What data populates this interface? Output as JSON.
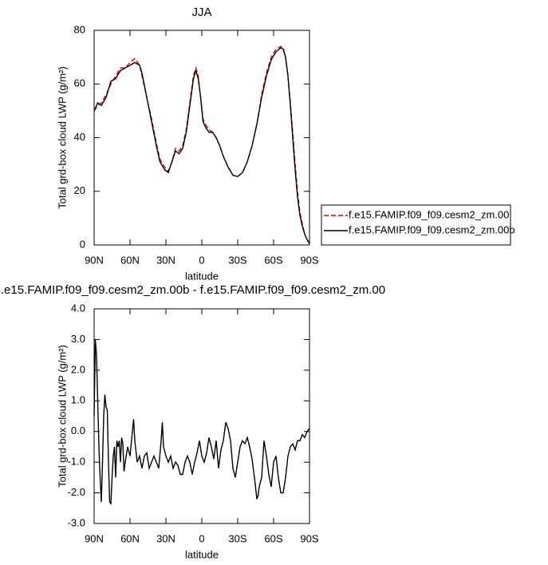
{
  "chart_data": [
    {
      "type": "line",
      "title": "JJA",
      "xlabel": "latitude",
      "ylabel": "Total grd-box cloud LWP (g/m²)",
      "x": [
        90,
        87,
        84,
        80,
        76,
        72,
        68,
        64,
        60,
        56,
        52,
        50,
        46,
        42,
        38,
        35,
        31,
        28,
        25,
        22,
        19,
        16,
        13,
        10,
        7,
        5,
        3,
        1,
        -1,
        -3,
        -6,
        -9,
        -12,
        -15,
        -18,
        -22,
        -26,
        -30,
        -34,
        -38,
        -42,
        -46,
        -50,
        -54,
        -58,
        -62,
        -66,
        -68,
        -70,
        -72,
        -74,
        -76,
        -78,
        -80,
        -82,
        -84,
        -86,
        -88,
        -90
      ],
      "series": [
        {
          "name": "f.e15.FAMIP.f09_f09.cesm2_zm.00",
          "color": "#e00000",
          "linestyle": "dashed",
          "values": [
            50,
            52,
            53,
            56,
            60,
            63,
            66,
            66,
            68,
            69.5,
            67,
            63,
            55,
            47,
            38,
            32,
            29,
            27.5,
            31,
            36,
            35,
            37,
            43,
            53,
            63,
            66,
            63,
            55,
            47,
            45,
            43,
            42,
            40,
            37,
            33,
            29,
            26,
            25.5,
            27,
            31,
            37,
            45,
            56,
            64,
            70,
            73,
            74,
            73.5,
            70,
            63,
            53,
            42,
            30,
            20,
            12,
            8,
            4,
            2,
            1
          ]
        },
        {
          "name": "f.e15.FAMIP.f09_f09.cesm2_zm.00b",
          "color": "#000000",
          "linestyle": "solid",
          "values": [
            50,
            53,
            52,
            55,
            61,
            62,
            65,
            66,
            67,
            68,
            67,
            64,
            55,
            46,
            37,
            31,
            28,
            27,
            31,
            35,
            34,
            36,
            42,
            52,
            62,
            65,
            62,
            55,
            46,
            44,
            42,
            42,
            40,
            37,
            33,
            29,
            26,
            25.5,
            27,
            31,
            37,
            45,
            55,
            63,
            69,
            72,
            73.5,
            73,
            70,
            63,
            52,
            40,
            28,
            18,
            11,
            7,
            4,
            2,
            0.5
          ]
        }
      ],
      "xlim": [
        90,
        -90
      ],
      "xticks": [
        {
          "value": 90,
          "label": "90N"
        },
        {
          "value": 60,
          "label": "60N"
        },
        {
          "value": 30,
          "label": "30N"
        },
        0,
        {
          "value": -30,
          "label": "30S"
        },
        {
          "value": -60,
          "label": "60S"
        },
        {
          "value": -90,
          "label": "90S"
        }
      ],
      "ylim": [
        0,
        80
      ],
      "yticks": [
        0,
        20,
        40,
        60,
        80
      ],
      "legend": "right"
    },
    {
      "type": "line",
      "title": ".e15.FAMIP.f09_f09.cesm2_zm.00b - f.e15.FAMIP.f09_f09.cesm2_zm.00",
      "xlabel": "latitude",
      "ylabel": "Total grd-box cloud LWP (g/m²)",
      "x": [
        90,
        89,
        88,
        87,
        86,
        85,
        84,
        83,
        82,
        81,
        80,
        79,
        78,
        77,
        76,
        75,
        74,
        73,
        72,
        71,
        70,
        69,
        68,
        67,
        66,
        65,
        64,
        62,
        60,
        58,
        57,
        56,
        54,
        52,
        50,
        48,
        46,
        44,
        42,
        40,
        38,
        36,
        34,
        33,
        32,
        30,
        28,
        26,
        24,
        22,
        20,
        18,
        16,
        14,
        12,
        10,
        8,
        6,
        4,
        2,
        0,
        -2,
        -4,
        -6,
        -8,
        -10,
        -12,
        -14,
        -16,
        -18,
        -20,
        -22,
        -24,
        -26,
        -28,
        -30,
        -32,
        -34,
        -36,
        -38,
        -40,
        -42,
        -44,
        -46,
        -47,
        -48,
        -50,
        -52,
        -54,
        -56,
        -58,
        -60,
        -62,
        -64,
        -66,
        -68,
        -70,
        -72,
        -74,
        -76,
        -78,
        -80,
        -82,
        -84,
        -86,
        -88,
        -90
      ],
      "values": [
        0.5,
        3.0,
        2.5,
        1.0,
        -0.5,
        -1.5,
        -2.3,
        -1.0,
        0.5,
        1.2,
        0.8,
        0.7,
        -1.0,
        -2.3,
        -2.35,
        -1.5,
        -0.8,
        -0.5,
        -1.5,
        -0.3,
        -0.5,
        -0.3,
        -1.0,
        -0.2,
        -0.4,
        -1.3,
        -1.0,
        -0.5,
        -0.8,
        0.0,
        0.4,
        -0.3,
        -1.0,
        -0.8,
        -1.2,
        -0.8,
        -0.7,
        -1.2,
        -1.0,
        -0.8,
        -1.0,
        -1.2,
        -0.3,
        0.3,
        -0.5,
        -0.8,
        -1.0,
        -0.8,
        -1.2,
        -1.0,
        -1.1,
        -1.4,
        -1.4,
        -1.0,
        -0.8,
        -1.0,
        -1.4,
        -1.0,
        -0.7,
        -0.3,
        -0.8,
        -1.0,
        -0.7,
        -0.2,
        -0.5,
        -0.9,
        -0.3,
        -1.2,
        -0.6,
        -0.3,
        0.3,
        0.1,
        -0.3,
        -1.2,
        -1.5,
        -1.0,
        -0.5,
        -0.3,
        -0.4,
        -0.2,
        -0.5,
        -0.9,
        -1.5,
        -2.2,
        -2.1,
        -1.8,
        -1.5,
        -0.3,
        -0.8,
        -1.4,
        -1.8,
        -1.0,
        -0.8,
        -1.5,
        -2.0,
        -2.0,
        -1.5,
        -0.8,
        -0.5,
        -0.4,
        -0.6,
        -0.3,
        -0.3,
        -0.1,
        -0.2,
        0.0,
        0.1
      ],
      "color": "#000000",
      "linestyle": "solid",
      "xlim": [
        90,
        -90
      ],
      "xticks": [
        {
          "value": 90,
          "label": "90N"
        },
        {
          "value": 60,
          "label": "60N"
        },
        {
          "value": 30,
          "label": "30N"
        },
        0,
        {
          "value": -30,
          "label": "30S"
        },
        {
          "value": -60,
          "label": "60S"
        },
        {
          "value": -90,
          "label": "90S"
        }
      ],
      "ylim": [
        -3,
        4
      ],
      "yticks": [
        {
          "value": -3,
          "label": "-3.0"
        },
        {
          "value": -2,
          "label": "-2.0"
        },
        {
          "value": -1,
          "label": "-1.0"
        },
        {
          "value": 0,
          "label": "0.0"
        },
        {
          "value": 1,
          "label": "1.0"
        },
        {
          "value": 2,
          "label": "2.0"
        },
        {
          "value": 3,
          "label": "3.0"
        },
        {
          "value": 4,
          "label": "4.0"
        }
      ]
    }
  ]
}
